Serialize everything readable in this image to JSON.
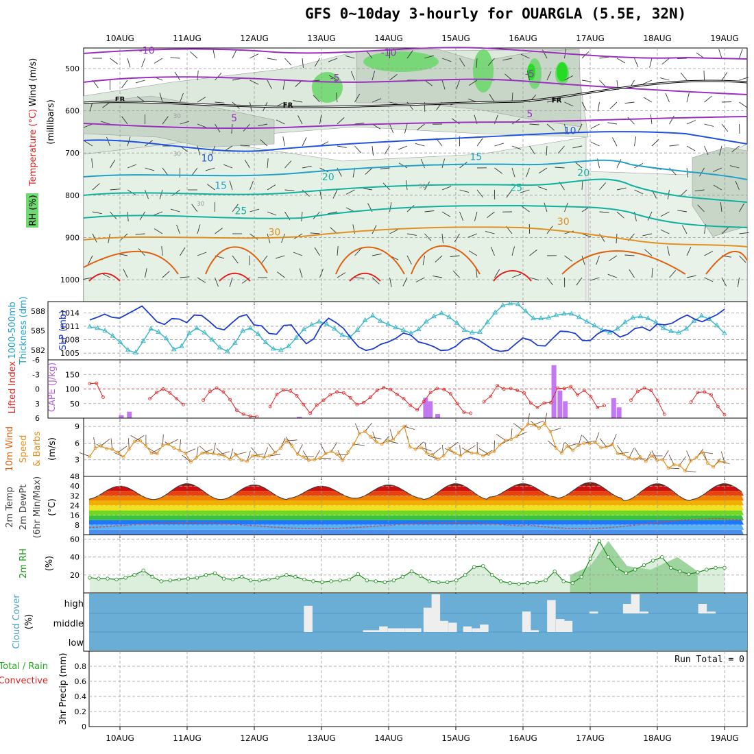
{
  "title": "GFS 0~10day 3-hourly for OUARGLA (5.5E, 32N)",
  "dates": [
    "10AUG",
    "11AUG",
    "12AUG",
    "13AUG",
    "14AUG",
    "15AUG",
    "16AUG",
    "17AUG",
    "18AUG",
    "19AUG"
  ],
  "colors": {
    "purple": "#9b2fc0",
    "blue": "#2050e0",
    "cyan": "#20a0c8",
    "teal": "#10b0a0",
    "orange": "#e09020",
    "red": "#e02020",
    "darkorange": "#e06010",
    "rh_fill": "#6fd86f",
    "cloud_blue": "#6aaed6",
    "cyan_tri": "#3fb8c8",
    "slp_blue": "#1a3ad0"
  },
  "chart_data": [
    {
      "panel": "upper-air",
      "type": "contour",
      "ylabel_parts": [
        "RH (%)",
        "Temperature (°C)",
        "Wind (m/s)"
      ],
      "ylabel2": "(millibars)",
      "yticks": [
        500,
        600,
        700,
        800,
        900,
        1000
      ],
      "ylim": [
        1050,
        450
      ],
      "line_labels": [
        {
          "level": "-10",
          "t": 0.4,
          "p": 465,
          "color": "purple"
        },
        {
          "level": "-10",
          "t": 4.0,
          "p": 470,
          "color": "purple"
        },
        {
          "level": "-5",
          "t": 3.2,
          "p": 530,
          "color": "purple"
        },
        {
          "level": "-5",
          "t": 6.1,
          "p": 520,
          "color": "purple"
        },
        {
          "level": "5",
          "t": 1.7,
          "p": 625,
          "color": "purple"
        },
        {
          "level": "5",
          "t": 6.1,
          "p": 615,
          "color": "purple"
        },
        {
          "level": "10",
          "t": 1.3,
          "p": 720,
          "color": "blue"
        },
        {
          "level": "10",
          "t": 6.7,
          "p": 655,
          "color": "blue"
        },
        {
          "level": "15",
          "t": 1.5,
          "p": 785,
          "color": "cyan"
        },
        {
          "level": "15",
          "t": 5.3,
          "p": 717,
          "color": "cyan"
        },
        {
          "level": "20",
          "t": 3.1,
          "p": 765,
          "color": "teal"
        },
        {
          "level": "20",
          "t": 6.9,
          "p": 755,
          "color": "teal"
        },
        {
          "level": "25",
          "t": 1.8,
          "p": 845,
          "color": "teal"
        },
        {
          "level": "25",
          "t": 5.9,
          "p": 790,
          "color": "teal"
        },
        {
          "level": "30",
          "t": 2.3,
          "p": 895,
          "color": "orange"
        },
        {
          "level": "30",
          "t": 6.6,
          "p": 870,
          "color": "orange"
        },
        {
          "level": "FR",
          "t": 0.0,
          "p": 578,
          "color": "black"
        },
        {
          "level": "FR",
          "t": 2.5,
          "p": 592,
          "color": "black"
        },
        {
          "level": "FR",
          "t": 6.5,
          "p": 580,
          "color": "black"
        },
        {
          "level": "30",
          "t": 0.85,
          "p": 617,
          "color": "gray"
        },
        {
          "level": "30",
          "t": 0.85,
          "p": 707,
          "color": "gray"
        },
        {
          "level": "30",
          "t": 1.2,
          "p": 825,
          "color": "gray"
        },
        {
          "level": "30",
          "t": 4.5,
          "p": 783,
          "color": "gray"
        }
      ]
    },
    {
      "panel": "thickness-slp",
      "type": "line",
      "ylabel_parts": [
        "1000-500mb",
        "Thickness (dm)"
      ],
      "ylabel_right": "SLP (mb)",
      "yticks_left": [
        582,
        585,
        588
      ],
      "yticks_right": [
        1005,
        1008,
        1011,
        1014
      ],
      "series": [
        {
          "name": "Thickness (dm)",
          "ylim": [
            580.5,
            589.5
          ],
          "values": [
            585.6,
            585.4,
            585.0,
            584.2,
            583.2,
            582.0,
            581.6,
            583.4,
            585.3,
            584.8,
            583.8,
            582.1,
            582.6,
            584.6,
            585.4,
            584.7,
            583.6,
            582.4,
            581.8,
            583.1,
            585.0,
            585.4,
            584.5,
            583.2,
            582.2,
            582.0,
            582.6,
            583.9,
            585.2,
            585.9,
            586.4,
            586.0,
            585.3,
            584.3,
            584.0,
            585.1,
            586.6,
            587.3,
            586.5,
            586.0,
            585.5,
            585.1,
            584.6,
            585.2,
            586.4,
            587.2,
            587.7,
            587.1,
            586.2,
            585.1,
            584.7,
            584.8,
            586.3,
            587.8,
            588.9,
            589.2,
            589.1,
            588.0,
            586.9,
            586.9,
            587.0,
            587.4,
            587.6,
            587.6,
            587.1,
            586.4,
            585.8,
            585.1,
            584.7,
            585.3,
            586.3,
            587.0,
            587.2,
            586.9,
            586.3,
            585.4,
            584.9,
            584.7,
            585.3,
            586.5,
            587.3,
            586.8,
            585.8,
            584.6
          ]
        },
        {
          "name": "SLP (mb)",
          "ylim": [
            1003.5,
            1016.5
          ],
          "values": [
            1012.4,
            1013.0,
            1013.7,
            1013.0,
            1012.8,
            1013.7,
            1014.6,
            1015.5,
            1013.8,
            1012.0,
            1011.4,
            1012.7,
            1012.6,
            1011.8,
            1013.5,
            1013.4,
            1012.1,
            1010.6,
            1010.2,
            1011.7,
            1013.1,
            1013.6,
            1011.3,
            1011.1,
            1009.4,
            1009.2,
            1011.2,
            1011.3,
            1009.0,
            1007.1,
            1008.2,
            1011.2,
            1012.8,
            1011.8,
            1010.5,
            1008.3,
            1006.4,
            1005.6,
            1006.0,
            1007.0,
            1007.5,
            1008.3,
            1009.5,
            1009.0,
            1007.5,
            1007.1,
            1006.5,
            1005.6,
            1005.7,
            1006.5,
            1008.0,
            1008.5,
            1008.0,
            1006.9,
            1005.8,
            1005.4,
            1005.6,
            1007.0,
            1008.4,
            1007.9,
            1006.7,
            1006.6,
            1008.3,
            1009.9,
            1009.8,
            1009.4,
            1007.8,
            1007.8,
            1009.3,
            1010.2,
            1009.8,
            1008.6,
            1009.2,
            1010.5,
            1010.8,
            1010.0,
            1011.5,
            1011.3,
            1011.7,
            1012.7,
            1013.5,
            1012.6,
            1012.0,
            1012.8,
            1013.6,
            1014.8
          ]
        }
      ]
    },
    {
      "panel": "stability",
      "type": "bar+line",
      "ylabel_left": "Lifted Index",
      "ylabel_right": "CAPE (J/kg)",
      "yticks_left": [
        "-6",
        "-3",
        "0",
        "3",
        "6"
      ],
      "yticks_right": [
        50,
        100,
        150
      ],
      "series": [
        {
          "name": "Lifted Index",
          "ylim": [
            6,
            -6
          ],
          "values": [
            -1.1,
            -1.2,
            1.7,
            null,
            null,
            null,
            null,
            null,
            null,
            2.0,
            0.7,
            0.0,
            0.8,
            2.0,
            3.2,
            null,
            null,
            2.3,
            0.5,
            -0.2,
            0.6,
            2.2,
            4.4,
            5.2,
            5.6,
            5.7,
            null,
            3.6,
            1.1,
            0.2,
            0.4,
            1.4,
            3.2,
            5.0,
            3.3,
            2.3,
            1.2,
            0.6,
            0.8,
            1.8,
            3.2,
            2.8,
            1.7,
            0.3,
            -0.3,
            0.1,
            1.1,
            2.0,
            3.4,
            4.3,
            2.6,
            0.7,
            -0.1,
            0.1,
            1.0,
            3.0,
            4.8,
            5.0,
            null,
            2.6,
            1.5,
            -0.7,
            0.0,
            -0.1,
            0.3,
            0.8,
            2.9,
            3.8,
            2.9,
            2.8,
            -0.2,
            -0.1,
            -0.5,
            1.2,
            0.3,
            1.6,
            3.8,
            3.4,
            null,
            null,
            null,
            2.3,
            0.5,
            -0.2,
            0.3,
            2.4,
            5.2,
            null,
            null,
            null,
            2.7,
            0.7,
            0.6,
            1.2,
            3.6,
            5.3
          ]
        },
        {
          "name": "CAPE (J/kg)",
          "values": [
            {
              "t": 0.02,
              "v": 10
            },
            {
              "t": 0.14,
              "v": 22
            },
            {
              "t": 2.67,
              "v": 5
            },
            {
              "t": 4.55,
              "v": 70
            },
            {
              "t": 4.62,
              "v": 58
            },
            {
              "t": 4.73,
              "v": 14
            },
            {
              "t": 6.46,
              "v": 182
            },
            {
              "t": 6.55,
              "v": 95
            },
            {
              "t": 6.63,
              "v": 58
            },
            {
              "t": 7.35,
              "v": 68
            },
            {
              "t": 7.43,
              "v": 37
            }
          ]
        }
      ]
    },
    {
      "panel": "wind10m",
      "type": "line",
      "ylabel_parts": [
        "10m Wind",
        "Speed",
        "& Barbs"
      ],
      "yunit": "(m/s)",
      "yticks": [
        3,
        6,
        9
      ],
      "ylim": [
        0,
        10.5
      ],
      "values": [
        3.6,
        5.1,
        5.5,
        5.0,
        4.9,
        4.3,
        3.5,
        4.9,
        6.3,
        6.4,
        5.5,
        4.2,
        4.1,
        5.6,
        5.8,
        5.1,
        4.7,
        4.2,
        2.6,
        3.4,
        4.2,
        4.2,
        4.1,
        3.9,
        3.7,
        3.1,
        3.9,
        2.9,
        2.7,
        3.7,
        3.7,
        3.4,
        3.7,
        4.3,
        5.1,
        6.4,
        5.5,
        4.0,
        3.5,
        2.9,
        3.0,
        3.3,
        4.1,
        4.5,
        4.0,
        2.9,
        4.4,
        5.8,
        7.7,
        8.1,
        7.1,
        6.2,
        5.8,
        6.4,
        6.6,
        7.9,
        9.0,
        5.3,
        4.9,
        5.2,
        4.2,
        3.9,
        3.1,
        3.7,
        5.0,
        4.2,
        3.7,
        4.5,
        4.2,
        4.2,
        3.7,
        4.0,
        4.5,
        5.7,
        6.5,
        6.7,
        7.2,
        8.4,
        9.4,
        9.3,
        8.7,
        9.5,
        8.1,
        5.1,
        4.2,
        5.4,
        4.7,
        5.6,
        6.0,
        5.9,
        6.1,
        5.2,
        5.3,
        5.8,
        4.1,
        4.0,
        3.3,
        3.1,
        3.5,
        2.7,
        3.7,
        2.9,
        3.0,
        1.5,
        2.1,
        2.0,
        1.0,
        2.8,
        3.4,
        4.4,
        2.4,
        1.7,
        2.7,
        2.6
      ]
    },
    {
      "panel": "temperature2m",
      "type": "area",
      "ylabel_parts": [
        "2m Temp",
        "2m DewPt",
        "(6hr Min/Max)"
      ],
      "yunit": "(°C)",
      "yticks": [
        8,
        16,
        24,
        32,
        40
      ],
      "extra_ticks": [
        48
      ],
      "ylim": [
        0,
        48
      ],
      "temp_max": [
        40,
        42,
        41,
        40,
        41,
        42,
        42,
        43,
        42,
        42
      ],
      "temp_min": [
        29,
        29,
        29,
        30,
        30,
        29,
        31,
        30,
        28,
        29
      ],
      "dewpoint_range": [
        5,
        13
      ]
    },
    {
      "panel": "rh2m",
      "type": "area",
      "ylabel_parts": [
        "2m RH"
      ],
      "yunit": "(%)",
      "yticks": [
        20,
        40,
        60
      ],
      "ylim": [
        0,
        65
      ],
      "values": [
        17,
        16,
        16,
        15,
        17,
        20,
        25,
        18,
        13,
        14,
        15,
        16,
        17,
        20,
        22,
        16,
        15,
        18,
        14,
        14,
        15,
        17,
        20,
        18,
        15,
        13,
        12,
        13,
        14,
        15,
        21,
        14,
        13,
        12,
        14,
        18,
        24,
        19,
        13,
        12,
        12,
        14,
        20,
        29,
        30,
        20,
        13,
        11,
        10,
        11,
        12,
        14,
        24,
        13,
        11,
        18,
        38,
        58,
        40,
        27,
        22,
        26,
        31,
        36,
        40,
        28,
        24,
        21,
        23,
        26,
        28,
        28
      ]
    },
    {
      "panel": "cloud",
      "type": "bar",
      "ylabel_parts": [
        "Cloud Cover",
        "(%)"
      ],
      "level_labels": [
        "high",
        "middle",
        "low"
      ],
      "cells": [
        {
          "t": 2.8,
          "lvl": "high",
          "v": 0.4
        },
        {
          "t": 2.8,
          "lvl": "middle",
          "v": 1.0
        },
        {
          "t": 3.68,
          "lvl": "middle",
          "v": 0.1
        },
        {
          "t": 3.8,
          "lvl": "middle",
          "v": 0.1
        },
        {
          "t": 3.92,
          "lvl": "middle",
          "v": 0.3
        },
        {
          "t": 4.05,
          "lvl": "middle",
          "v": 0.2
        },
        {
          "t": 4.17,
          "lvl": "middle",
          "v": 0.2
        },
        {
          "t": 4.3,
          "lvl": "middle",
          "v": 0.2
        },
        {
          "t": 4.42,
          "lvl": "middle",
          "v": 0.2
        },
        {
          "t": 4.58,
          "lvl": "high",
          "v": 0.3
        },
        {
          "t": 4.7,
          "lvl": "high",
          "v": 1.0
        },
        {
          "t": 4.58,
          "lvl": "middle",
          "v": 1.0
        },
        {
          "t": 4.7,
          "lvl": "middle",
          "v": 1.0
        },
        {
          "t": 4.82,
          "lvl": "middle",
          "v": 0.6
        },
        {
          "t": 4.95,
          "lvl": "middle",
          "v": 0.5
        },
        {
          "t": 5.17,
          "lvl": "middle",
          "v": 0.3
        },
        {
          "t": 5.3,
          "lvl": "middle",
          "v": 0.2
        },
        {
          "t": 5.42,
          "lvl": "middle",
          "v": 0.4
        },
        {
          "t": 6.05,
          "lvl": "high",
          "v": 0.1
        },
        {
          "t": 6.05,
          "lvl": "middle",
          "v": 1.0
        },
        {
          "t": 6.17,
          "lvl": "middle",
          "v": 0.1
        },
        {
          "t": 6.42,
          "lvl": "high",
          "v": 0.7
        },
        {
          "t": 6.42,
          "lvl": "middle",
          "v": 1.0
        },
        {
          "t": 6.55,
          "lvl": "middle",
          "v": 0.7
        },
        {
          "t": 6.67,
          "lvl": "middle",
          "v": 0.6
        },
        {
          "t": 7.05,
          "lvl": "high",
          "v": 0.1
        },
        {
          "t": 7.55,
          "lvl": "high",
          "v": 0.5
        },
        {
          "t": 7.67,
          "lvl": "high",
          "v": 1.0
        },
        {
          "t": 7.8,
          "lvl": "high",
          "v": 0.1
        },
        {
          "t": 8.67,
          "lvl": "high",
          "v": 0.5
        },
        {
          "t": 8.8,
          "lvl": "high",
          "v": 0.1
        }
      ]
    },
    {
      "panel": "precip",
      "type": "bar",
      "legend_parts": [
        "Total / Rain",
        "Convective"
      ],
      "ylabel": "3hr Precip (mm)",
      "annotation": "Run Total = 0",
      "yticks": [
        "0",
        "0.2",
        "0.4",
        "0.6",
        "0.8"
      ],
      "ylim": [
        0,
        1
      ],
      "values": []
    }
  ]
}
